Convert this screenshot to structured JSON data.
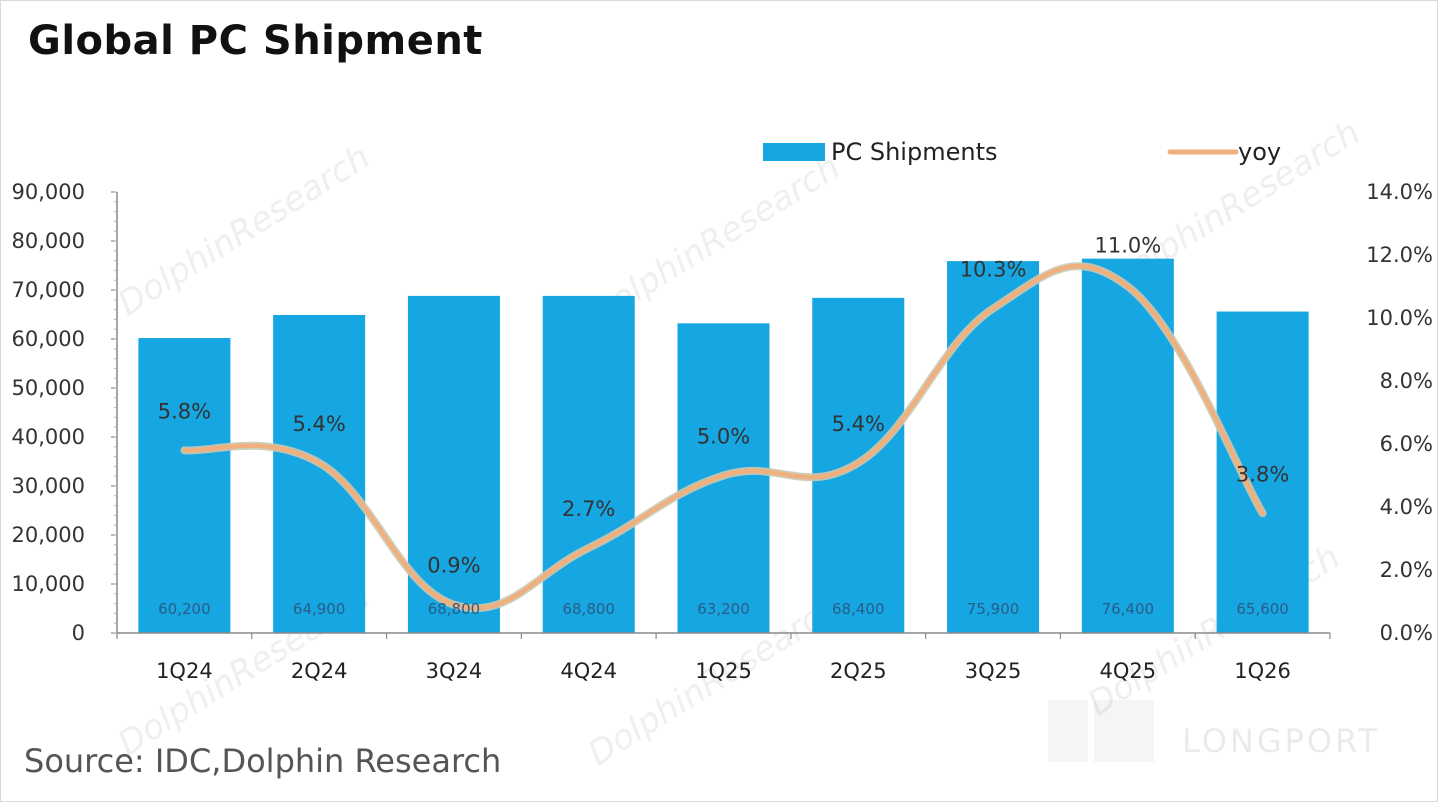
{
  "chart_data": {
    "type": "bar",
    "title": "Global PC Shipment",
    "source": "Source: IDC,Dolphin Research",
    "categories": [
      "1Q24",
      "2Q24",
      "3Q24",
      "4Q24",
      "1Q25",
      "2Q25",
      "3Q25",
      "4Q25",
      "1Q26"
    ],
    "series": [
      {
        "name": "PC Shipments",
        "type": "bar",
        "axis": "left",
        "color": "#16a6e2",
        "values": [
          60200,
          64900,
          68800,
          68800,
          63200,
          68400,
          75900,
          76400,
          65600
        ],
        "labels": [
          "60,200",
          "64,900",
          "68,800",
          "68,800",
          "63,200",
          "68,400",
          "75,900",
          "76,400",
          "65,600"
        ]
      },
      {
        "name": "yoy",
        "type": "line",
        "axis": "right",
        "color": "#f0b07e",
        "values": [
          5.8,
          5.4,
          0.9,
          2.7,
          5.0,
          5.4,
          10.3,
          11.0,
          3.8
        ],
        "labels": [
          "5.8%",
          "5.4%",
          "0.9%",
          "2.7%",
          "5.0%",
          "5.4%",
          "10.3%",
          "11.0%",
          "3.8%"
        ]
      }
    ],
    "y_left": {
      "ylim": [
        0,
        90000
      ],
      "ticks": [
        0,
        10000,
        20000,
        30000,
        40000,
        50000,
        60000,
        70000,
        80000,
        90000
      ],
      "tick_labels": [
        "0",
        "10,000",
        "20,000",
        "30,000",
        "40,000",
        "50,000",
        "60,000",
        "70,000",
        "80,000",
        "90,000"
      ]
    },
    "y_right": {
      "ylim": [
        0,
        14
      ],
      "ticks": [
        0,
        2,
        4,
        6,
        8,
        10,
        12,
        14
      ],
      "tick_labels": [
        "0.0%",
        "2.0%",
        "4.0%",
        "6.0%",
        "8.0%",
        "10.0%",
        "12.0%",
        "14.0%"
      ]
    },
    "legend": {
      "position": "top-right",
      "items": [
        "PC Shipments",
        "yoy"
      ]
    },
    "grid": false
  },
  "watermark": {
    "text": "DolphinResearch",
    "logo": "LONGPORT"
  }
}
